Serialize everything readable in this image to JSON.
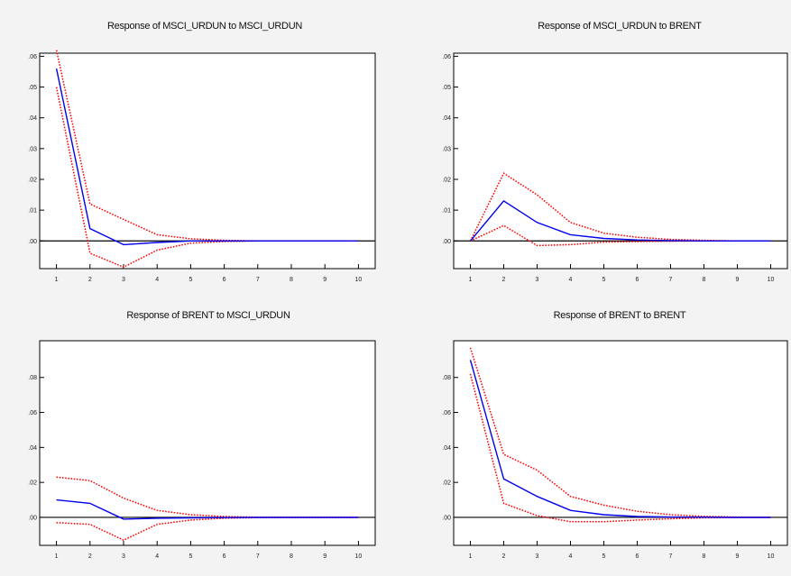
{
  "figure": {
    "background": "#f3f3f3",
    "colors": {
      "response": "#0000ee",
      "band": "#ff0000",
      "zero_line": "#000000",
      "frame": "#000000"
    }
  },
  "chart_data": [
    {
      "type": "line",
      "title": "Response of MSCI_URDUN to MSCI_URDUN",
      "x": [
        1,
        2,
        3,
        4,
        5,
        6,
        7,
        8,
        9,
        10
      ],
      "xticks": [
        "1",
        "2",
        "3",
        "4",
        "5",
        "6",
        "7",
        "8",
        "9",
        "10"
      ],
      "ylim": [
        -0.009,
        0.061
      ],
      "yticks": [
        0.06,
        0.05,
        0.04,
        0.03,
        0.02,
        0.01,
        0.0
      ],
      "ytick_labels": [
        ".06",
        ".05",
        ".04",
        ".03",
        ".02",
        ".01",
        ".00"
      ],
      "zero_line": true,
      "series": [
        {
          "role": "response",
          "style": "solid",
          "values": [
            0.056,
            0.004,
            -0.0012,
            -0.0005,
            0.0,
            0.0,
            0.0,
            0.0,
            0.0,
            0.0
          ]
        },
        {
          "role": "upper",
          "style": "dotted",
          "values": [
            0.062,
            0.012,
            0.007,
            0.002,
            0.0007,
            0.0002,
            0.0,
            0.0,
            0.0,
            0.0
          ]
        },
        {
          "role": "lower",
          "style": "dotted",
          "values": [
            0.05,
            -0.004,
            -0.0085,
            -0.003,
            -0.0007,
            -0.0002,
            0.0,
            0.0,
            0.0,
            0.0
          ]
        }
      ]
    },
    {
      "type": "line",
      "title": "Response of MSCI_URDUN to BRENT",
      "x": [
        1,
        2,
        3,
        4,
        5,
        6,
        7,
        8,
        9,
        10
      ],
      "xticks": [
        "1",
        "2",
        "3",
        "4",
        "5",
        "6",
        "7",
        "8",
        "9",
        "10"
      ],
      "ylim": [
        -0.009,
        0.061
      ],
      "yticks": [
        0.06,
        0.05,
        0.04,
        0.03,
        0.02,
        0.01,
        0.0
      ],
      "ytick_labels": [
        ".06",
        ".05",
        ".04",
        ".03",
        ".02",
        ".01",
        ".00"
      ],
      "zero_line": true,
      "series": [
        {
          "role": "response",
          "style": "solid",
          "values": [
            0.0,
            0.013,
            0.006,
            0.002,
            0.0008,
            0.0003,
            0.0001,
            0.0,
            0.0,
            0.0
          ]
        },
        {
          "role": "upper",
          "style": "dotted",
          "values": [
            0.0,
            0.022,
            0.015,
            0.006,
            0.0025,
            0.0012,
            0.0005,
            0.0002,
            0.0,
            0.0
          ]
        },
        {
          "role": "lower",
          "style": "dotted",
          "values": [
            0.0,
            0.005,
            -0.0015,
            -0.0012,
            -0.0004,
            -0.0002,
            -0.0001,
            0.0,
            0.0,
            0.0
          ]
        }
      ]
    },
    {
      "type": "line",
      "title": "Response of BRENT to MSCI_URDUN",
      "x": [
        1,
        2,
        3,
        4,
        5,
        6,
        7,
        8,
        9,
        10
      ],
      "xticks": [
        "1",
        "2",
        "3",
        "4",
        "5",
        "6",
        "7",
        "8",
        "9",
        "10"
      ],
      "ylim": [
        -0.016,
        0.101
      ],
      "yticks": [
        0.08,
        0.06,
        0.04,
        0.02,
        0.0
      ],
      "ytick_labels": [
        ".08",
        ".06",
        ".04",
        ".02",
        ".00"
      ],
      "zero_line": true,
      "series": [
        {
          "role": "response",
          "style": "solid",
          "values": [
            0.01,
            0.008,
            -0.001,
            -0.0005,
            -0.0003,
            -0.0001,
            0.0,
            0.0,
            0.0,
            0.0
          ]
        },
        {
          "role": "upper",
          "style": "dotted",
          "values": [
            0.023,
            0.021,
            0.011,
            0.004,
            0.0015,
            0.0005,
            0.0001,
            0.0,
            0.0,
            0.0
          ]
        },
        {
          "role": "lower",
          "style": "dotted",
          "values": [
            -0.003,
            -0.004,
            -0.013,
            -0.004,
            -0.0015,
            -0.0005,
            -0.0001,
            0.0,
            0.0,
            0.0
          ]
        }
      ]
    },
    {
      "type": "line",
      "title": "Response of BRENT to BRENT",
      "x": [
        1,
        2,
        3,
        4,
        5,
        6,
        7,
        8,
        9,
        10
      ],
      "xticks": [
        "1",
        "2",
        "3",
        "4",
        "5",
        "6",
        "7",
        "8",
        "9",
        "10"
      ],
      "ylim": [
        -0.016,
        0.101
      ],
      "yticks": [
        0.08,
        0.06,
        0.04,
        0.02,
        0.0
      ],
      "ytick_labels": [
        ".08",
        ".06",
        ".04",
        ".02",
        ".00"
      ],
      "zero_line": true,
      "series": [
        {
          "role": "response",
          "style": "solid",
          "values": [
            0.09,
            0.022,
            0.012,
            0.004,
            0.0015,
            0.0005,
            0.0002,
            0.0001,
            0.0,
            0.0
          ]
        },
        {
          "role": "upper",
          "style": "dotted",
          "values": [
            0.097,
            0.036,
            0.027,
            0.012,
            0.007,
            0.0035,
            0.0015,
            0.0006,
            0.0002,
            0.0
          ]
        },
        {
          "role": "lower",
          "style": "dotted",
          "values": [
            0.082,
            0.008,
            0.001,
            -0.0025,
            -0.0025,
            -0.0015,
            -0.0008,
            -0.0003,
            -0.0001,
            0.0
          ]
        }
      ]
    }
  ]
}
